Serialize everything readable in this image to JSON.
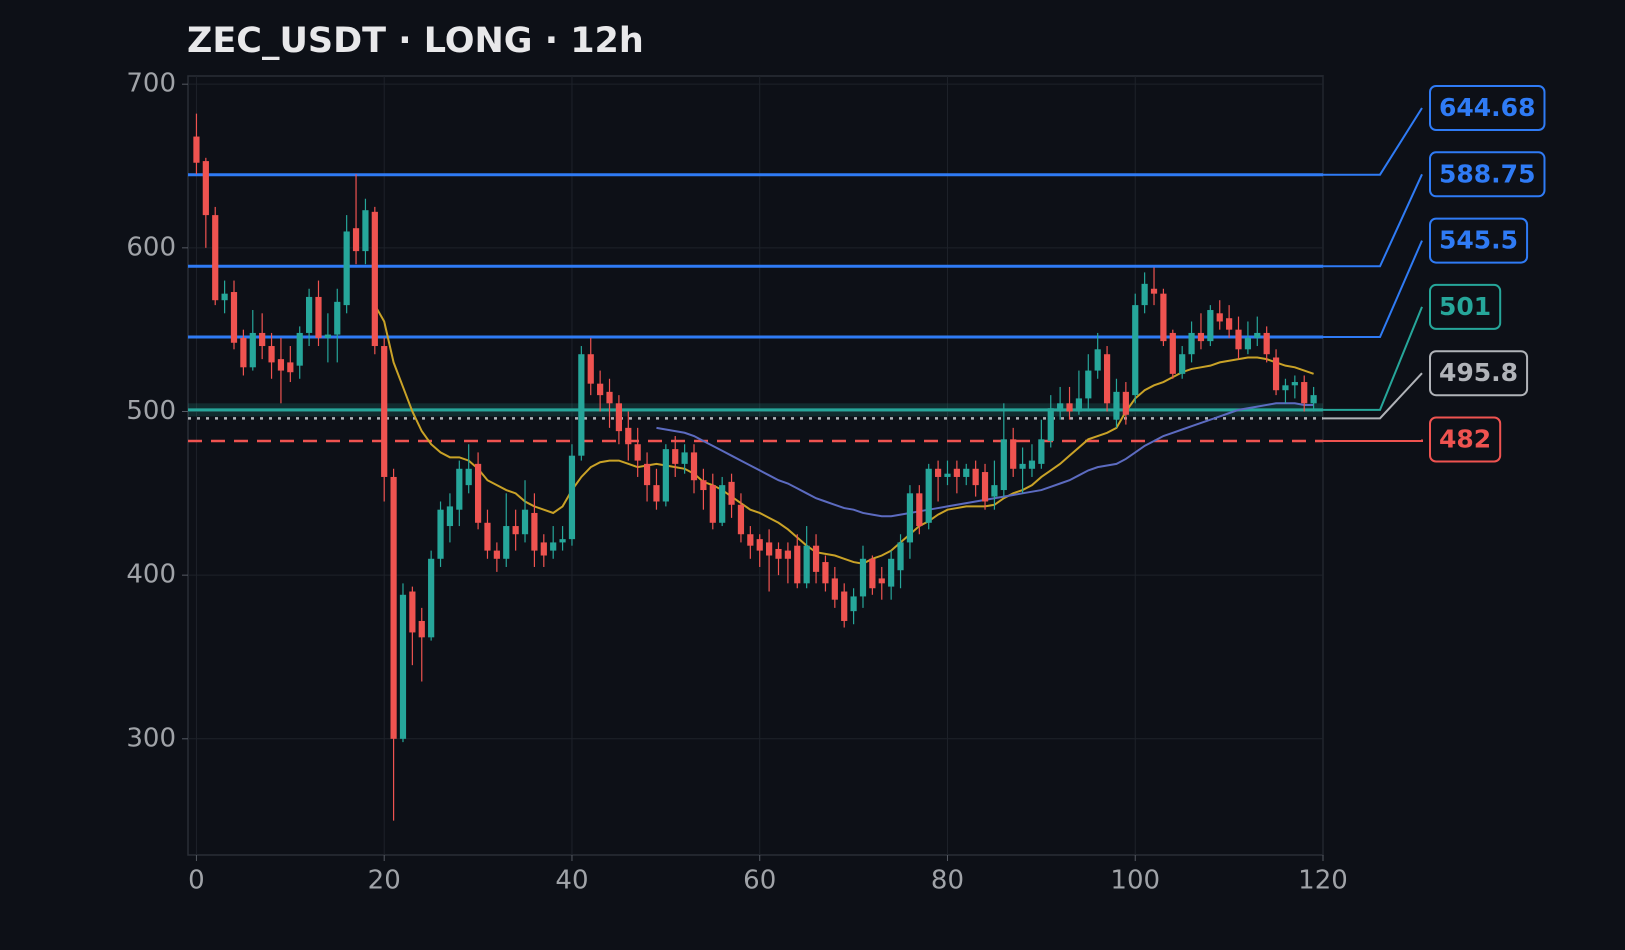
{
  "chart_data": {
    "type": "candlestick",
    "title": "ZEC_USDT · LONG · 12h",
    "xlim": [
      -0.9,
      120
    ],
    "ylim": [
      229,
      705
    ],
    "xticks": [
      0,
      20,
      40,
      60,
      80,
      100,
      120
    ],
    "yticks": [
      300,
      400,
      500,
      600,
      700
    ],
    "grid": true,
    "up_color": "#26a69a",
    "down_color": "#ef5350",
    "x": [
      0,
      1,
      2,
      3,
      4,
      5,
      6,
      7,
      8,
      9,
      10,
      11,
      12,
      13,
      14,
      15,
      16,
      17,
      18,
      19,
      20,
      21,
      22,
      23,
      24,
      25,
      26,
      27,
      28,
      29,
      30,
      31,
      32,
      33,
      34,
      35,
      36,
      37,
      38,
      39,
      40,
      41,
      42,
      43,
      44,
      45,
      46,
      47,
      48,
      49,
      50,
      51,
      52,
      53,
      54,
      55,
      56,
      57,
      58,
      59,
      60,
      61,
      62,
      63,
      64,
      65,
      66,
      67,
      68,
      69,
      70,
      71,
      72,
      73,
      74,
      75,
      76,
      77,
      78,
      79,
      80,
      81,
      82,
      83,
      84,
      85,
      86,
      87,
      88,
      89,
      90,
      91,
      92,
      93,
      94,
      95,
      96,
      97,
      98,
      99,
      100,
      101,
      102,
      103,
      104,
      105,
      106,
      107,
      108,
      109,
      110,
      111,
      112,
      113,
      114,
      115,
      116,
      117,
      118,
      119
    ],
    "open": [
      668,
      653,
      620,
      568,
      573,
      545,
      527,
      548,
      540,
      532,
      530,
      528,
      548,
      570,
      545,
      547,
      565,
      612,
      598,
      622,
      540,
      460,
      300,
      390,
      372,
      362,
      410,
      430,
      440,
      455,
      468,
      432,
      415,
      410,
      430,
      425,
      438,
      420,
      415,
      420,
      422,
      473,
      535,
      517,
      512,
      505,
      490,
      480,
      468,
      455,
      445,
      477,
      468,
      475,
      458,
      455,
      432,
      457,
      443,
      425,
      422,
      420,
      416,
      415,
      418,
      395,
      418,
      408,
      398,
      390,
      378,
      387,
      410,
      398,
      393,
      403,
      420,
      450,
      432,
      465,
      460,
      465,
      460,
      465,
      463,
      448,
      452,
      483,
      465,
      465,
      468,
      482,
      500,
      505,
      500,
      508,
      525,
      535,
      495,
      512,
      510,
      565,
      575,
      572,
      548,
      523,
      535,
      548,
      543,
      560,
      557,
      550,
      538,
      545,
      548,
      533,
      513,
      516,
      518,
      505
    ],
    "high": [
      682,
      655,
      625,
      580,
      580,
      550,
      562,
      560,
      548,
      545,
      540,
      552,
      575,
      580,
      560,
      575,
      620,
      645,
      630,
      625,
      545,
      465,
      395,
      393,
      380,
      415,
      445,
      450,
      470,
      480,
      475,
      440,
      420,
      450,
      440,
      458,
      450,
      425,
      430,
      430,
      480,
      540,
      545,
      525,
      520,
      510,
      500,
      490,
      475,
      465,
      480,
      485,
      480,
      480,
      465,
      462,
      460,
      462,
      450,
      430,
      425,
      428,
      420,
      420,
      425,
      430,
      425,
      412,
      405,
      395,
      392,
      418,
      412,
      405,
      415,
      425,
      455,
      455,
      468,
      470,
      470,
      470,
      468,
      470,
      468,
      470,
      505,
      490,
      478,
      480,
      495,
      510,
      515,
      515,
      525,
      535,
      548,
      540,
      520,
      518,
      572,
      585,
      588,
      575,
      550,
      540,
      555,
      560,
      565,
      568,
      565,
      558,
      555,
      558,
      552,
      538,
      520,
      522,
      522,
      515
    ],
    "low": [
      645,
      600,
      565,
      560,
      538,
      522,
      525,
      532,
      520,
      505,
      518,
      520,
      540,
      540,
      530,
      530,
      560,
      590,
      590,
      535,
      445,
      250,
      298,
      345,
      335,
      360,
      405,
      420,
      430,
      450,
      428,
      410,
      402,
      405,
      415,
      420,
      405,
      405,
      410,
      415,
      418,
      470,
      510,
      500,
      490,
      480,
      470,
      460,
      445,
      440,
      442,
      460,
      462,
      450,
      440,
      428,
      430,
      435,
      420,
      410,
      405,
      390,
      400,
      395,
      392,
      392,
      395,
      390,
      380,
      368,
      370,
      380,
      388,
      385,
      385,
      392,
      410,
      425,
      428,
      445,
      455,
      450,
      455,
      448,
      440,
      440,
      448,
      460,
      450,
      460,
      465,
      478,
      495,
      495,
      498,
      500,
      520,
      500,
      490,
      492,
      505,
      560,
      565,
      540,
      520,
      520,
      530,
      538,
      540,
      550,
      545,
      532,
      535,
      540,
      530,
      510,
      505,
      508,
      500,
      500
    ],
    "close": [
      652,
      620,
      568,
      572,
      542,
      527,
      548,
      540,
      530,
      525,
      524,
      548,
      570,
      545,
      547,
      567,
      610,
      598,
      623,
      540,
      460,
      300,
      388,
      365,
      362,
      410,
      440,
      442,
      465,
      465,
      432,
      415,
      410,
      430,
      425,
      440,
      415,
      412,
      420,
      422,
      473,
      535,
      517,
      510,
      505,
      488,
      480,
      470,
      455,
      445,
      477,
      468,
      475,
      458,
      452,
      432,
      455,
      443,
      425,
      418,
      415,
      412,
      410,
      410,
      395,
      418,
      402,
      395,
      385,
      372,
      387,
      410,
      392,
      395,
      410,
      420,
      450,
      430,
      465,
      460,
      462,
      460,
      465,
      455,
      445,
      455,
      483,
      465,
      468,
      470,
      483,
      502,
      505,
      500,
      508,
      525,
      538,
      505,
      512,
      498,
      565,
      578,
      572,
      543,
      523,
      535,
      548,
      543,
      562,
      555,
      550,
      538,
      545,
      548,
      535,
      513,
      516,
      518,
      505,
      510
    ],
    "series": [
      {
        "color": "#c9a227",
        "values": [
          null,
          null,
          null,
          null,
          null,
          null,
          null,
          null,
          null,
          null,
          null,
          null,
          null,
          null,
          null,
          null,
          null,
          null,
          null,
          565,
          555,
          530,
          515,
          500,
          488,
          480,
          475,
          472,
          472,
          470,
          465,
          458,
          455,
          452,
          450,
          445,
          442,
          440,
          438,
          442,
          452,
          460,
          466,
          469,
          470,
          470,
          468,
          466,
          467,
          468,
          467,
          466,
          465,
          462,
          457,
          455,
          452,
          448,
          444,
          440,
          438,
          435,
          432,
          428,
          423,
          418,
          414,
          413,
          412,
          410,
          408,
          407,
          410,
          412,
          415,
          420,
          425,
          430,
          433,
          437,
          440,
          441,
          442,
          442,
          442,
          443,
          447,
          450,
          452,
          455,
          460,
          464,
          468,
          473,
          478,
          483,
          485,
          487,
          490,
          500,
          508,
          513,
          516,
          518,
          521,
          524,
          526,
          527,
          528,
          530,
          531,
          532,
          533,
          533,
          532,
          530,
          528,
          527,
          525,
          523
        ]
      },
      {
        "color": "#5c6bc0",
        "values": [
          null,
          null,
          null,
          null,
          null,
          null,
          null,
          null,
          null,
          null,
          null,
          null,
          null,
          null,
          null,
          null,
          null,
          null,
          null,
          null,
          null,
          null,
          null,
          null,
          null,
          null,
          null,
          null,
          null,
          null,
          null,
          null,
          null,
          null,
          null,
          null,
          null,
          null,
          null,
          null,
          null,
          null,
          null,
          null,
          null,
          null,
          null,
          null,
          null,
          490,
          489,
          488,
          487,
          485,
          482,
          479,
          476,
          473,
          470,
          467,
          464,
          461,
          458,
          456,
          453,
          450,
          447,
          445,
          443,
          441,
          440,
          438,
          437,
          436,
          436,
          437,
          438,
          439,
          440,
          441,
          442,
          443,
          444,
          445,
          446,
          447,
          448,
          449,
          450,
          451,
          452,
          454,
          456,
          458,
          461,
          464,
          466,
          467,
          468,
          471,
          475,
          479,
          482,
          485,
          487,
          489,
          491,
          493,
          495,
          497,
          499,
          501,
          502,
          503,
          504,
          505,
          505,
          505,
          504,
          504
        ]
      }
    ],
    "levels": [
      {
        "value": 644.68,
        "color": "#2f7bf5",
        "style": "solid"
      },
      {
        "value": 588.75,
        "color": "#2f7bf5",
        "style": "solid"
      },
      {
        "value": 545.5,
        "color": "#2f7bf5",
        "style": "solid"
      },
      {
        "value": 501,
        "color": "#26a69a",
        "style": "solid",
        "zone": [
          497,
          505
        ]
      },
      {
        "value": 495.8,
        "color": "#b0b3b8",
        "style": "dotted"
      },
      {
        "value": 482,
        "color": "#ef5350",
        "style": "dashed"
      }
    ]
  }
}
